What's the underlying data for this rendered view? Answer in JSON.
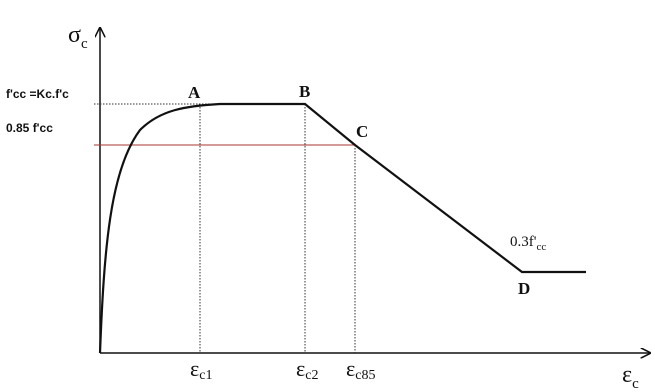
{
  "y_axis_label": {
    "symbol": "σ",
    "subscript": "c"
  },
  "x_axis_label": {
    "symbol": "ε",
    "subscript": "c"
  },
  "stress_labels": [
    "f'cc =Kc.f'c",
    "0.85 f'cc"
  ],
  "points": [
    "A",
    "B",
    "C",
    "D"
  ],
  "strain_labels": [
    {
      "symbol": "ε",
      "subscript": "c1"
    },
    {
      "symbol": "ε",
      "subscript": "c2"
    },
    {
      "symbol": "ε",
      "subscript": "c85"
    }
  ],
  "residual_label": {
    "main": "0.3f'",
    "subscript": "cc"
  }
}
